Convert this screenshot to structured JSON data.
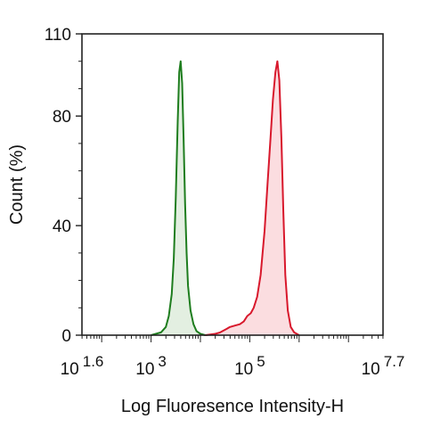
{
  "chart_data": {
    "type": "area",
    "title": "",
    "xlabel": "Log Fluoresence Intensity-H",
    "ylabel": "Count  (%)",
    "x_scale": "log10",
    "xlim_log10": [
      1.6,
      7.7
    ],
    "ylim": [
      0,
      110
    ],
    "x_ticks": [
      {
        "base": "10",
        "exp": "1.6",
        "log10": 1.6
      },
      {
        "base": "10",
        "exp": "3",
        "log10": 3
      },
      {
        "base": "10",
        "exp": "5",
        "log10": 5
      },
      {
        "base": "10",
        "exp": "7.7",
        "log10": 7.7
      }
    ],
    "y_ticks": [
      {
        "label": "0",
        "value": 0
      },
      {
        "label": "40",
        "value": 40
      },
      {
        "label": "80",
        "value": 80
      },
      {
        "label": "110",
        "value": 110
      }
    ],
    "grid": false,
    "legend": "none",
    "series": [
      {
        "color": "#1e7d1e",
        "fill": "#e3efe1",
        "x_log10": [
          3.0,
          3.2,
          3.3,
          3.36,
          3.42,
          3.46,
          3.5,
          3.54,
          3.57,
          3.6,
          3.63,
          3.66,
          3.69,
          3.72,
          3.75,
          3.8,
          3.86,
          3.92,
          4.0,
          4.1
        ],
        "y": [
          0,
          1,
          3,
          7,
          15,
          28,
          50,
          78,
          96,
          100,
          92,
          72,
          48,
          30,
          18,
          9,
          4,
          1.5,
          0.5,
          0
        ]
      },
      {
        "color": "#d8182c",
        "fill": "#fbdde0",
        "x_log10": [
          4.1,
          4.3,
          4.4,
          4.5,
          4.6,
          4.7,
          4.8,
          4.88,
          4.95,
          5.02,
          5.08,
          5.15,
          5.22,
          5.3,
          5.36,
          5.42,
          5.47,
          5.52,
          5.56,
          5.6,
          5.64,
          5.68,
          5.72,
          5.77,
          5.83,
          5.9,
          6.0
        ],
        "y": [
          0,
          0.5,
          1,
          2,
          3,
          3.5,
          4,
          5,
          7,
          8,
          10,
          14,
          22,
          38,
          55,
          72,
          86,
          96,
          100,
          93,
          72,
          45,
          22,
          9,
          3,
          1,
          0
        ]
      }
    ]
  }
}
